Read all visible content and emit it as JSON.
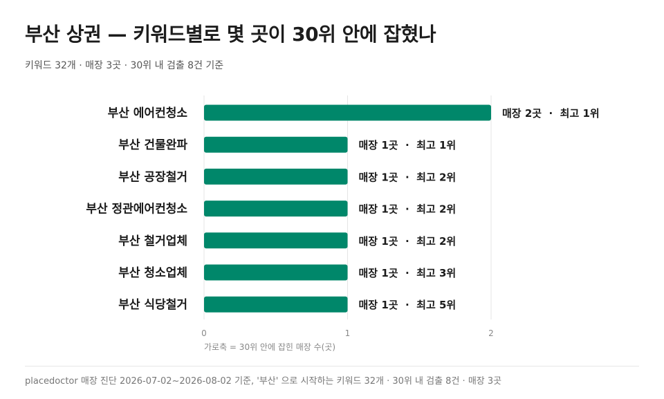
{
  "header": {
    "title": "부산 상권 — 키워드별로 몇 곳이 30위 안에 잡혔나",
    "subtitle": "키워드 32개 · 매장 3곳 · 30위 내 검출 8건 기준"
  },
  "footer": {
    "text": "placedoctor 매장 진단 2026-07-02~2026-08-02 기준, '부산' 으로 시작하는 키워드 32개 · 30위 내 검출 8건 · 매장 3곳"
  },
  "colors": {
    "bar": "#00876a",
    "grid": "#e4e4e4"
  },
  "chart_data": {
    "type": "bar",
    "orientation": "horizontal",
    "categories": [
      "부산 에어컨청소",
      "부산 건물완파",
      "부산 공장철거",
      "부산 정관에어컨청소",
      "부산 철거업체",
      "부산 청소업체",
      "부산 식당철거"
    ],
    "values": [
      2,
      1,
      1,
      1,
      1,
      1,
      1
    ],
    "data_labels": [
      "매장 2곳  ·  최고 1위",
      "매장 1곳  ·  최고 1위",
      "매장 1곳  ·  최고 2위",
      "매장 1곳  ·  최고 2위",
      "매장 1곳  ·  최고 2위",
      "매장 1곳  ·  최고 3위",
      "매장 1곳  ·  최고 5위"
    ],
    "xlabel": "가로축 = 30위 안에 잡힌 매장 수(곳)",
    "xlim": [
      0,
      2
    ],
    "xticks": [
      0,
      1,
      2
    ],
    "grid": true
  }
}
